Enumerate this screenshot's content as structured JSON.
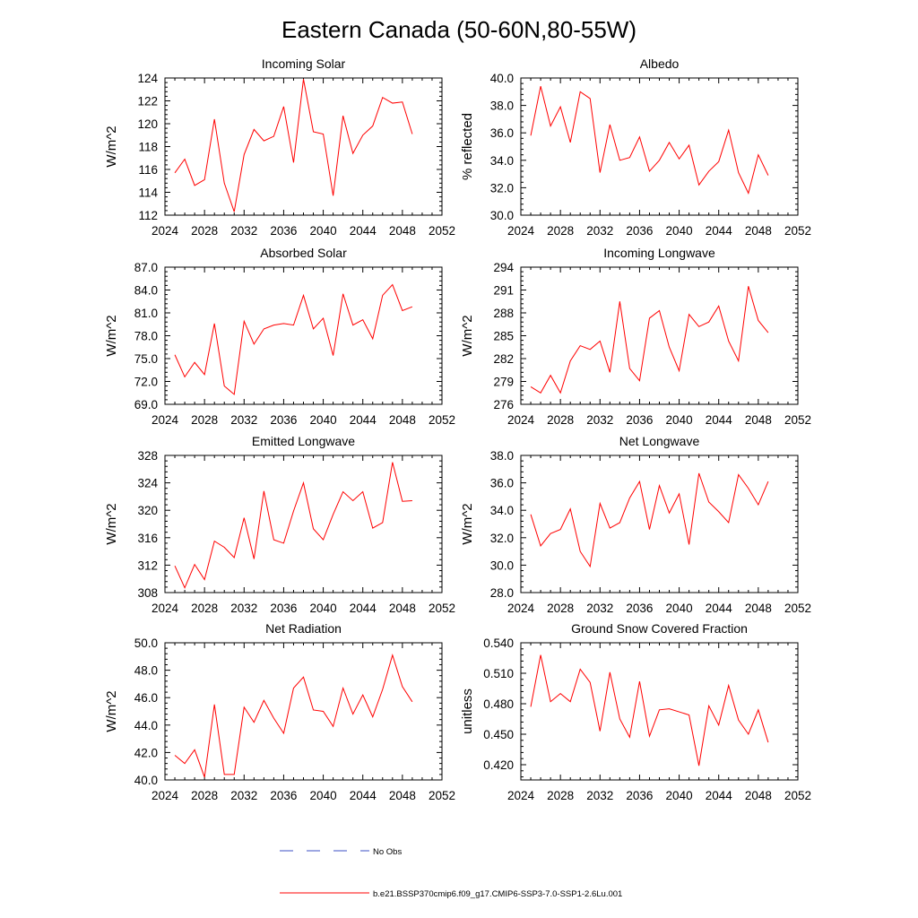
{
  "title": "Eastern Canada (50-60N,80-55W)",
  "colors": {
    "model_line": "#ff0000",
    "obs_line": "#3b4fc4",
    "axis": "#000000"
  },
  "chart_data": [
    {
      "type": "line",
      "title": "Incoming Solar",
      "xlabel": "",
      "ylabel": "W/m^2",
      "xlim": [
        2024,
        2052
      ],
      "xticks": [
        "2024",
        "2028",
        "2032",
        "2036",
        "2040",
        "2044",
        "2048",
        "2052"
      ],
      "ylim": [
        112,
        124
      ],
      "yticks": [
        "112",
        "114",
        "116",
        "118",
        "120",
        "122",
        "124"
      ],
      "x": [
        2025,
        2026,
        2027,
        2028,
        2029,
        2030,
        2031,
        2032,
        2033,
        2034,
        2035,
        2036,
        2037,
        2038,
        2039,
        2040,
        2041,
        2042,
        2043,
        2044,
        2045,
        2046,
        2047,
        2048,
        2049
      ],
      "series": [
        {
          "values": [
            115.7,
            116.9,
            114.6,
            115.1,
            120.4,
            114.8,
            112.3,
            117.3,
            119.5,
            118.5,
            118.9,
            121.5,
            116.6,
            123.9,
            119.3,
            119.1,
            113.7,
            120.7,
            117.4,
            119.0,
            119.8,
            122.3,
            121.8,
            121.9,
            119.1
          ]
        }
      ]
    },
    {
      "type": "line",
      "title": "Albedo",
      "xlabel": "",
      "ylabel": "% reflected",
      "xlim": [
        2024,
        2052
      ],
      "xticks": [
        "2024",
        "2028",
        "2032",
        "2036",
        "2040",
        "2044",
        "2048",
        "2052"
      ],
      "ylim": [
        30,
        40
      ],
      "yticks": [
        "30.0",
        "32.0",
        "34.0",
        "36.0",
        "38.0",
        "40.0"
      ],
      "x": [
        2025,
        2026,
        2027,
        2028,
        2029,
        2030,
        2031,
        2032,
        2033,
        2034,
        2035,
        2036,
        2037,
        2038,
        2039,
        2040,
        2041,
        2042,
        2043,
        2044,
        2045,
        2046,
        2047,
        2048,
        2049
      ],
      "series": [
        {
          "values": [
            35.8,
            39.4,
            36.5,
            37.9,
            35.3,
            39.0,
            38.5,
            33.1,
            36.6,
            34.0,
            34.2,
            35.7,
            33.2,
            34.0,
            35.3,
            34.1,
            35.1,
            32.2,
            33.2,
            33.9,
            36.2,
            33.1,
            31.6,
            34.4,
            32.9
          ]
        }
      ]
    },
    {
      "type": "line",
      "title": "Absorbed Solar",
      "xlabel": "",
      "ylabel": "W/m^2",
      "xlim": [
        2024,
        2052
      ],
      "xticks": [
        "2024",
        "2028",
        "2032",
        "2036",
        "2040",
        "2044",
        "2048",
        "2052"
      ],
      "ylim": [
        69,
        87
      ],
      "yticks": [
        "69.0",
        "72.0",
        "75.0",
        "78.0",
        "81.0",
        "84.0",
        "87.0"
      ],
      "x": [
        2025,
        2026,
        2027,
        2028,
        2029,
        2030,
        2031,
        2032,
        2033,
        2034,
        2035,
        2036,
        2037,
        2038,
        2039,
        2040,
        2041,
        2042,
        2043,
        2044,
        2045,
        2046,
        2047,
        2048,
        2049
      ],
      "series": [
        {
          "values": [
            75.5,
            72.6,
            74.5,
            72.9,
            79.6,
            71.4,
            70.3,
            79.9,
            76.9,
            78.9,
            79.4,
            79.6,
            79.4,
            83.3,
            78.9,
            80.3,
            75.4,
            83.5,
            79.4,
            80.1,
            77.6,
            83.3,
            84.7,
            81.3,
            81.8
          ]
        }
      ]
    },
    {
      "type": "line",
      "title": "Incoming Longwave",
      "xlabel": "",
      "ylabel": "W/m^2",
      "xlim": [
        2024,
        2052
      ],
      "xticks": [
        "2024",
        "2028",
        "2032",
        "2036",
        "2040",
        "2044",
        "2048",
        "2052"
      ],
      "ylim": [
        276,
        294
      ],
      "yticks": [
        "276",
        "279",
        "282",
        "285",
        "288",
        "291",
        "294"
      ],
      "x": [
        2025,
        2026,
        2027,
        2028,
        2029,
        2030,
        2031,
        2032,
        2033,
        2034,
        2035,
        2036,
        2037,
        2038,
        2039,
        2040,
        2041,
        2042,
        2043,
        2044,
        2045,
        2046,
        2047,
        2048,
        2049
      ],
      "series": [
        {
          "values": [
            278.3,
            277.5,
            279.8,
            277.5,
            281.7,
            283.7,
            283.2,
            284.3,
            280.2,
            289.5,
            280.7,
            279.1,
            287.3,
            288.3,
            283.5,
            280.4,
            287.8,
            286.2,
            286.8,
            288.9,
            284.3,
            281.7,
            291.5,
            287.0,
            285.4
          ]
        }
      ]
    },
    {
      "type": "line",
      "title": "Emitted Longwave",
      "xlabel": "",
      "ylabel": "W/m^2",
      "xlim": [
        2024,
        2052
      ],
      "xticks": [
        "2024",
        "2028",
        "2032",
        "2036",
        "2040",
        "2044",
        "2048",
        "2052"
      ],
      "ylim": [
        308,
        328
      ],
      "yticks": [
        "308",
        "312",
        "316",
        "320",
        "324",
        "328"
      ],
      "x": [
        2025,
        2026,
        2027,
        2028,
        2029,
        2030,
        2031,
        2032,
        2033,
        2034,
        2035,
        2036,
        2037,
        2038,
        2039,
        2040,
        2041,
        2042,
        2043,
        2044,
        2045,
        2046,
        2047,
        2048,
        2049
      ],
      "series": [
        {
          "values": [
            311.9,
            308.7,
            312.1,
            309.9,
            315.5,
            314.6,
            313.1,
            318.9,
            312.9,
            322.8,
            315.7,
            315.2,
            319.9,
            324.0,
            317.3,
            315.7,
            319.4,
            322.7,
            321.4,
            322.7,
            317.4,
            318.2,
            327.0,
            321.3,
            321.4
          ]
        }
      ]
    },
    {
      "type": "line",
      "title": "Net Longwave",
      "xlabel": "",
      "ylabel": "W/m^2",
      "xlim": [
        2024,
        2052
      ],
      "xticks": [
        "2024",
        "2028",
        "2032",
        "2036",
        "2040",
        "2044",
        "2048",
        "2052"
      ],
      "ylim": [
        28,
        38
      ],
      "yticks": [
        "28.0",
        "30.0",
        "32.0",
        "34.0",
        "36.0",
        "38.0"
      ],
      "x": [
        2025,
        2026,
        2027,
        2028,
        2029,
        2030,
        2031,
        2032,
        2033,
        2034,
        2035,
        2036,
        2037,
        2038,
        2039,
        2040,
        2041,
        2042,
        2043,
        2044,
        2045,
        2046,
        2047,
        2048,
        2049
      ],
      "series": [
        {
          "values": [
            33.7,
            31.4,
            32.3,
            32.6,
            34.1,
            31.0,
            29.9,
            34.5,
            32.7,
            33.1,
            34.9,
            36.1,
            32.6,
            35.8,
            33.8,
            35.2,
            31.5,
            36.7,
            34.6,
            33.9,
            33.1,
            36.6,
            35.6,
            34.4,
            36.1
          ]
        }
      ]
    },
    {
      "type": "line",
      "title": "Net Radiation",
      "xlabel": "",
      "ylabel": "W/m^2",
      "xlim": [
        2024,
        2052
      ],
      "xticks": [
        "2024",
        "2028",
        "2032",
        "2036",
        "2040",
        "2044",
        "2048",
        "2052"
      ],
      "ylim": [
        40,
        50
      ],
      "yticks": [
        "40.0",
        "42.0",
        "44.0",
        "46.0",
        "48.0",
        "50.0"
      ],
      "x": [
        2025,
        2026,
        2027,
        2028,
        2029,
        2030,
        2031,
        2032,
        2033,
        2034,
        2035,
        2036,
        2037,
        2038,
        2039,
        2040,
        2041,
        2042,
        2043,
        2044,
        2045,
        2046,
        2047,
        2048,
        2049
      ],
      "series": [
        {
          "values": [
            41.8,
            41.2,
            42.2,
            40.2,
            45.5,
            40.4,
            40.4,
            45.3,
            44.2,
            45.8,
            44.5,
            43.4,
            46.7,
            47.5,
            45.1,
            45.0,
            43.9,
            46.7,
            44.8,
            46.2,
            44.6,
            46.6,
            49.1,
            46.8,
            45.7
          ]
        }
      ]
    },
    {
      "type": "line",
      "title": "Ground Snow Covered Fraction",
      "xlabel": "",
      "ylabel": "unitless",
      "xlim": [
        2024,
        2052
      ],
      "xticks": [
        "2024",
        "2028",
        "2032",
        "2036",
        "2040",
        "2044",
        "2048",
        "2052"
      ],
      "ylim": [
        0.405,
        0.54
      ],
      "yticks": [
        "0.420",
        "0.450",
        "0.480",
        "0.510",
        "0.540"
      ],
      "x": [
        2025,
        2026,
        2027,
        2028,
        2029,
        2030,
        2031,
        2032,
        2033,
        2034,
        2035,
        2036,
        2037,
        2038,
        2039,
        2040,
        2041,
        2042,
        2043,
        2044,
        2045,
        2046,
        2047,
        2048,
        2049
      ],
      "series": [
        {
          "values": [
            0.477,
            0.528,
            0.482,
            0.49,
            0.482,
            0.514,
            0.501,
            0.453,
            0.511,
            0.465,
            0.447,
            0.502,
            0.448,
            0.474,
            0.475,
            0.472,
            0.469,
            0.419,
            0.478,
            0.459,
            0.498,
            0.464,
            0.45,
            0.474,
            0.442
          ]
        }
      ]
    }
  ],
  "legend": {
    "items": [
      {
        "label": "No Obs",
        "style": "dashed"
      },
      {
        "label": "b.e21.BSSP370cmip6.f09_g17.CMIP6-SSP3-7.0-SSP1-2.6Lu.001",
        "style": "solid"
      }
    ]
  }
}
